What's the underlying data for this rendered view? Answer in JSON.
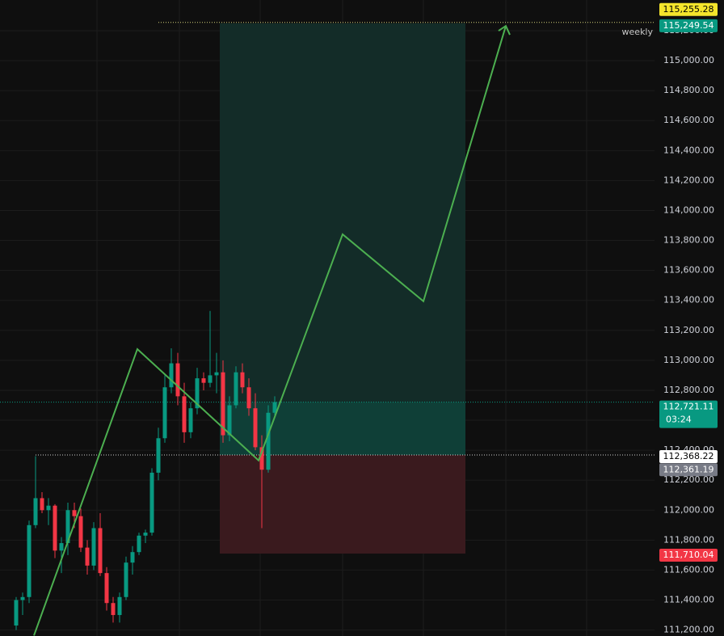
{
  "chart_data": {
    "type": "candlestick",
    "interval_label": "weekly",
    "up_color": "#089981",
    "down_color": "#f23645",
    "xlim": [
      -2.5,
      98.75
    ],
    "ylim": [
      111160,
      115405
    ],
    "yticks": [
      {
        "value": 111200,
        "label": "111,200.00"
      },
      {
        "value": 111400,
        "label": "111,400.00"
      },
      {
        "value": 111600,
        "label": "111,600.00"
      },
      {
        "value": 111800,
        "label": "111,800.00"
      },
      {
        "value": 112000,
        "label": "112,000.00"
      },
      {
        "value": 112200,
        "label": "112,200.00"
      },
      {
        "value": 112400,
        "label": "112,400.00"
      },
      {
        "value": 112600,
        "label": "112,600.00"
      },
      {
        "value": 112800,
        "label": "112,800.00"
      },
      {
        "value": 113000,
        "label": "113,000.00"
      },
      {
        "value": 113200,
        "label": "113,200.00"
      },
      {
        "value": 113400,
        "label": "113,400.00"
      },
      {
        "value": 113600,
        "label": "113,600.00"
      },
      {
        "value": 113800,
        "label": "113,800.00"
      },
      {
        "value": 114000,
        "label": "114,000.00"
      },
      {
        "value": 114200,
        "label": "114,200.00"
      },
      {
        "value": 114400,
        "label": "114,400.00"
      },
      {
        "value": 114600,
        "label": "114,600.00"
      },
      {
        "value": 114800,
        "label": "114,800.00"
      },
      {
        "value": 115000,
        "label": "115,000.00"
      },
      {
        "value": 115200,
        "label": "115,200.00"
      }
    ],
    "open": [
      111230,
      111400,
      111420,
      111900,
      112080,
      112000,
      112030,
      111730,
      111780,
      112000,
      111960,
      111750,
      111630,
      111880,
      111580,
      111380,
      111300,
      111420,
      111650,
      111720,
      111830,
      111850,
      112250,
      112480,
      112820,
      112980,
      112760,
      112520,
      112680,
      112880,
      112850,
      112900,
      112920,
      112500,
      112700,
      112920,
      112820,
      112680,
      112420,
      112270,
      112650
    ],
    "high": [
      111420,
      111450,
      111930,
      112360,
      112120,
      112080,
      112040,
      111820,
      112050,
      112050,
      112010,
      111800,
      111920,
      111980,
      111620,
      111420,
      111450,
      111690,
      111760,
      111850,
      111870,
      112280,
      112550,
      112900,
      113080,
      113050,
      112850,
      112720,
      112950,
      112920,
      113330,
      113050,
      113000,
      112760,
      112960,
      112980,
      112880,
      112780,
      112500,
      112700,
      112760
    ],
    "low": [
      111200,
      111300,
      111380,
      111880,
      111980,
      111900,
      111680,
      111580,
      111700,
      111880,
      111720,
      111570,
      111600,
      111560,
      111330,
      111250,
      111250,
      111400,
      111570,
      111700,
      111780,
      111830,
      112200,
      112450,
      112780,
      112700,
      112450,
      112480,
      112640,
      112800,
      112820,
      112780,
      112450,
      112460,
      112680,
      112780,
      112630,
      112400,
      111880,
      112250,
      112620
    ],
    "close": [
      111400,
      111420,
      111900,
      112080,
      112000,
      112030,
      111730,
      111780,
      112000,
      111960,
      111750,
      111630,
      111880,
      111580,
      111380,
      111300,
      111420,
      111650,
      111720,
      111830,
      111850,
      112250,
      112480,
      112820,
      112980,
      112760,
      112520,
      112680,
      112880,
      112850,
      112900,
      112920,
      112500,
      112700,
      112920,
      112820,
      112680,
      112420,
      112270,
      112650,
      112721
    ],
    "position": {
      "x": [
        31.5,
        69.5
      ],
      "target": 115249.54,
      "entry": 112368.22,
      "stop": 111710.04,
      "current": 112721.11
    },
    "projection": {
      "color": "#4caf50",
      "x": [
        2.75,
        18.75,
        37.5,
        50.5,
        63,
        75.75
      ],
      "y": [
        111163,
        113075,
        112332,
        113841,
        113394,
        115232
      ]
    },
    "price_markers": [
      {
        "value": 115255.28,
        "label": "115,255.28",
        "color": "#f5e52c",
        "text_color": "#000000"
      },
      {
        "value": 115249.54,
        "label": "115,249.54",
        "color": "#089981",
        "text_color": "#ffffff"
      },
      {
        "value": 112721.11,
        "label": "112,721.11",
        "color": "#089981",
        "text_color": "#ffffff"
      },
      {
        "value": 112368.22,
        "label": "112,368.22",
        "color": "#ffffff",
        "text_color": "#000000"
      },
      {
        "value": 112361.19,
        "label": "112,361.19",
        "color": "#787b86",
        "text_color": "#ffffff"
      },
      {
        "value": 111710.04,
        "label": "111,710.04",
        "color": "#f23645",
        "text_color": "#ffffff"
      }
    ],
    "countdown": "03:24"
  }
}
